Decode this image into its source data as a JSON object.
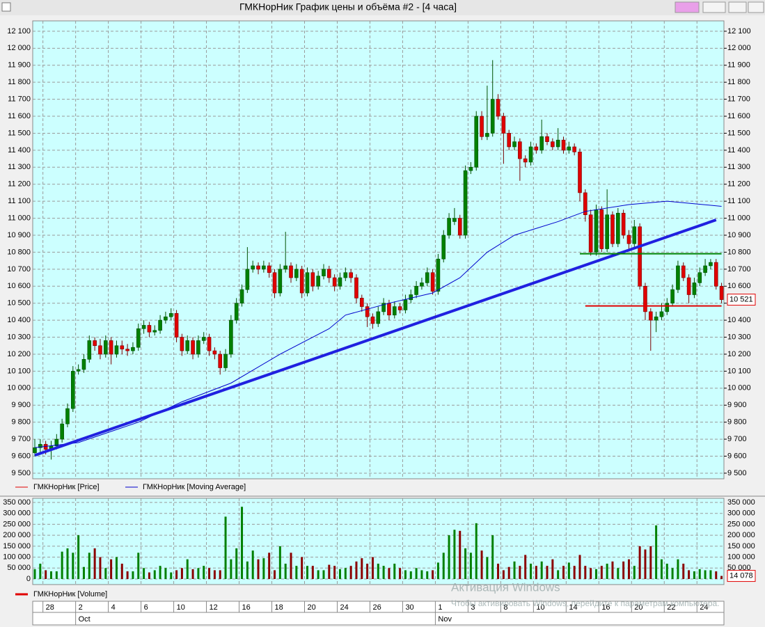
{
  "window_title": "ГМКНорНик График цены и объёма #2 - [4 часа]",
  "chart_data": {
    "type": "candlestick",
    "price_name": "ГМКНорНик [Price]",
    "price_legend_color": "#e00000",
    "up_color": "#008000",
    "down_color": "#e00000",
    "grid": true,
    "categories": [
      null,
      null,
      "28",
      null,
      null,
      null,
      null,
      null,
      "2",
      null,
      null,
      null,
      null,
      null,
      "4",
      null,
      null,
      null,
      null,
      null,
      "6",
      null,
      null,
      null,
      null,
      null,
      "10",
      null,
      null,
      null,
      null,
      null,
      "12",
      null,
      null,
      null,
      null,
      null,
      "16",
      null,
      null,
      null,
      null,
      null,
      "18",
      null,
      null,
      null,
      null,
      null,
      "20",
      null,
      null,
      null,
      null,
      null,
      "24",
      null,
      null,
      null,
      null,
      null,
      "26",
      null,
      null,
      null,
      null,
      null,
      "30",
      null,
      null,
      null,
      null,
      null,
      "1",
      null,
      null,
      null,
      null,
      null,
      "3",
      null,
      null,
      null,
      null,
      null,
      "8",
      null,
      null,
      null,
      null,
      null,
      "10",
      null,
      null,
      null,
      null,
      null,
      "14",
      null,
      null,
      null,
      null,
      null,
      "16",
      null,
      null,
      null,
      null,
      null,
      "20",
      null,
      null,
      null,
      null,
      null,
      "22",
      null,
      null,
      null,
      null,
      null,
      "24",
      null,
      null,
      null,
      null
    ],
    "months": [
      "Oct",
      "Nov"
    ],
    "candles": [
      [
        9620,
        9700,
        9600,
        9650
      ],
      [
        9650,
        9700,
        9620,
        9670
      ],
      [
        9670,
        9690,
        9610,
        9640
      ],
      [
        9640,
        9690,
        9580,
        9660
      ],
      [
        9660,
        9730,
        9640,
        9700
      ],
      [
        9700,
        9820,
        9680,
        9790
      ],
      [
        9790,
        9910,
        9770,
        9880
      ],
      [
        9880,
        10130,
        9860,
        10100
      ],
      [
        10100,
        10140,
        10080,
        10110
      ],
      [
        10110,
        10200,
        10090,
        10170
      ],
      [
        10170,
        10310,
        10150,
        10280
      ],
      [
        10280,
        10300,
        10220,
        10250
      ],
      [
        10250,
        10290,
        10170,
        10200
      ],
      [
        10200,
        10310,
        10180,
        10280
      ],
      [
        10280,
        10300,
        10140,
        10200
      ],
      [
        10200,
        10280,
        10180,
        10250
      ],
      [
        10250,
        10280,
        10200,
        10230
      ],
      [
        10230,
        10260,
        10190,
        10220
      ],
      [
        10220,
        10270,
        10200,
        10240
      ],
      [
        10240,
        10380,
        10220,
        10350
      ],
      [
        10350,
        10400,
        10320,
        10370
      ],
      [
        10370,
        10390,
        10300,
        10330
      ],
      [
        10330,
        10370,
        10310,
        10340
      ],
      [
        10340,
        10430,
        10320,
        10400
      ],
      [
        10400,
        10450,
        10380,
        10420
      ],
      [
        10420,
        10470,
        10400,
        10440
      ],
      [
        10440,
        10460,
        10270,
        10300
      ],
      [
        10300,
        10320,
        10190,
        10220
      ],
      [
        10220,
        10310,
        10200,
        10280
      ],
      [
        10280,
        10300,
        10170,
        10200
      ],
      [
        10200,
        10310,
        10180,
        10280
      ],
      [
        10280,
        10330,
        10260,
        10300
      ],
      [
        10300,
        10320,
        10190,
        10220
      ],
      [
        10220,
        10240,
        10170,
        10200
      ],
      [
        10200,
        10220,
        10080,
        10120
      ],
      [
        10120,
        10230,
        10100,
        10200
      ],
      [
        10200,
        10430,
        10180,
        10400
      ],
      [
        10400,
        10530,
        10380,
        10500
      ],
      [
        10500,
        10610,
        10480,
        10580
      ],
      [
        10580,
        10830,
        10560,
        10700
      ],
      [
        10700,
        10750,
        10680,
        10720
      ],
      [
        10720,
        10740,
        10670,
        10700
      ],
      [
        10700,
        10750,
        10680,
        10720
      ],
      [
        10720,
        10740,
        10650,
        10680
      ],
      [
        10680,
        10700,
        10530,
        10560
      ],
      [
        10560,
        10730,
        10540,
        10700
      ],
      [
        10700,
        10920,
        10680,
        10720
      ],
      [
        10720,
        10740,
        10620,
        10650
      ],
      [
        10650,
        10730,
        10630,
        10700
      ],
      [
        10700,
        10720,
        10530,
        10560
      ],
      [
        10560,
        10710,
        10540,
        10680
      ],
      [
        10680,
        10700,
        10570,
        10600
      ],
      [
        10600,
        10690,
        10580,
        10660
      ],
      [
        10660,
        10730,
        10640,
        10700
      ],
      [
        10700,
        10720,
        10620,
        10650
      ],
      [
        10650,
        10670,
        10570,
        10600
      ],
      [
        10600,
        10680,
        10580,
        10650
      ],
      [
        10650,
        10710,
        10630,
        10680
      ],
      [
        10680,
        10700,
        10620,
        10650
      ],
      [
        10650,
        10670,
        10500,
        10530
      ],
      [
        10530,
        10550,
        10450,
        10480
      ],
      [
        10480,
        10500,
        10360,
        10420
      ],
      [
        10420,
        10440,
        10350,
        10380
      ],
      [
        10380,
        10480,
        10360,
        10450
      ],
      [
        10450,
        10530,
        10430,
        10500
      ],
      [
        10500,
        10520,
        10400,
        10430
      ],
      [
        10430,
        10510,
        10410,
        10480
      ],
      [
        10480,
        10500,
        10440,
        10460
      ],
      [
        10460,
        10550,
        10440,
        10520
      ],
      [
        10520,
        10580,
        10500,
        10550
      ],
      [
        10550,
        10630,
        10530,
        10600
      ],
      [
        10600,
        10650,
        10580,
        10620
      ],
      [
        10620,
        10710,
        10600,
        10680
      ],
      [
        10680,
        10700,
        10550,
        10570
      ],
      [
        10570,
        10790,
        10550,
        10760
      ],
      [
        10760,
        10930,
        10740,
        10900
      ],
      [
        10900,
        11030,
        10880,
        11000
      ],
      [
        10980,
        11060,
        10960,
        11000
      ],
      [
        11000,
        11020,
        10880,
        10900
      ],
      [
        10900,
        11310,
        10880,
        11280
      ],
      [
        11280,
        11330,
        11260,
        11300
      ],
      [
        11300,
        11630,
        11280,
        11600
      ],
      [
        11600,
        11630,
        11460,
        11480
      ],
      [
        11480,
        11780,
        11460,
        11500
      ],
      [
        11500,
        11930,
        11480,
        11700
      ],
      [
        11700,
        11730,
        11580,
        11600
      ],
      [
        11600,
        11620,
        11320,
        11500
      ],
      [
        11500,
        11520,
        11400,
        11420
      ],
      [
        11420,
        11480,
        11400,
        11450
      ],
      [
        11450,
        11470,
        11220,
        11350
      ],
      [
        11350,
        11370,
        11300,
        11330
      ],
      [
        11330,
        11450,
        11310,
        11420
      ],
      [
        11420,
        11440,
        11380,
        11400
      ],
      [
        11400,
        11580,
        11380,
        11480
      ],
      [
        11480,
        11500,
        11430,
        11450
      ],
      [
        11450,
        11470,
        11400,
        11420
      ],
      [
        11420,
        11530,
        11400,
        11460
      ],
      [
        11460,
        11480,
        11380,
        11400
      ],
      [
        11400,
        11450,
        11380,
        11420
      ],
      [
        11420,
        11440,
        11370,
        11390
      ],
      [
        11390,
        11410,
        11100,
        11150
      ],
      [
        11150,
        11170,
        10980,
        11020
      ],
      [
        11020,
        11050,
        10780,
        10800
      ],
      [
        10800,
        11080,
        10780,
        11050
      ],
      [
        11050,
        11070,
        10800,
        10820
      ],
      [
        10820,
        11170,
        10800,
        11020
      ],
      [
        11020,
        11040,
        10830,
        10850
      ],
      [
        10850,
        11060,
        10830,
        11030
      ],
      [
        11030,
        11050,
        10880,
        10900
      ],
      [
        10900,
        10930,
        10820,
        10850
      ],
      [
        10850,
        10990,
        10830,
        10950
      ],
      [
        10950,
        10970,
        10580,
        10600
      ],
      [
        10600,
        10620,
        10400,
        10450
      ],
      [
        10450,
        10470,
        10220,
        10400
      ],
      [
        10400,
        10450,
        10330,
        10420
      ],
      [
        10420,
        10500,
        10400,
        10450
      ],
      [
        10450,
        10530,
        10430,
        10500
      ],
      [
        10500,
        10610,
        10480,
        10580
      ],
      [
        10580,
        10750,
        10560,
        10720
      ],
      [
        10720,
        10740,
        10630,
        10650
      ],
      [
        10650,
        10670,
        10500,
        10550
      ],
      [
        10550,
        10650,
        10530,
        10620
      ],
      [
        10620,
        10710,
        10600,
        10680
      ],
      [
        10680,
        10760,
        10660,
        10720
      ],
      [
        10720,
        10760,
        10700,
        10740
      ],
      [
        10740,
        10760,
        10580,
        10600
      ],
      [
        10600,
        10620,
        10500,
        10521
      ]
    ],
    "ylim": [
      9467,
      12161
    ],
    "yticks": [
      {
        "value": 9500,
        "label": "9 500"
      },
      {
        "value": 9600,
        "label": "9 600"
      },
      {
        "value": 9700,
        "label": "9 700"
      },
      {
        "value": 9800,
        "label": "9 800"
      },
      {
        "value": 9900,
        "label": "9 900"
      },
      {
        "value": 10000,
        "label": "10 000"
      },
      {
        "value": 10100,
        "label": "10 100"
      },
      {
        "value": 10200,
        "label": "10 200"
      },
      {
        "value": 10300,
        "label": "10 300"
      },
      {
        "value": 10400,
        "label": "10 400"
      },
      {
        "value": 10500,
        "label": "10 500"
      },
      {
        "value": 10600,
        "label": "10 600"
      },
      {
        "value": 10700,
        "label": "10 700"
      },
      {
        "value": 10800,
        "label": "10 800"
      },
      {
        "value": 10900,
        "label": "10 900"
      },
      {
        "value": 11000,
        "label": "11 000"
      },
      {
        "value": 11100,
        "label": "11 100"
      },
      {
        "value": 11200,
        "label": "11 200"
      },
      {
        "value": 11300,
        "label": "11 300"
      },
      {
        "value": 11400,
        "label": "11 400"
      },
      {
        "value": 11500,
        "label": "11 500"
      },
      {
        "value": 11600,
        "label": "11 600"
      },
      {
        "value": 11700,
        "label": "11 700"
      },
      {
        "value": 11800,
        "label": "11 800"
      },
      {
        "value": 11900,
        "label": "11 900"
      },
      {
        "value": 12000,
        "label": "12 000"
      },
      {
        "value": 12100,
        "label": "12 100"
      }
    ],
    "last_price": {
      "value": 10521,
      "label": "10 521"
    },
    "ma": {
      "name": "ГМКНорНик [Moving Average]",
      "color": "#0000cc",
      "x": [
        0,
        8,
        19,
        27,
        36,
        45,
        54,
        57,
        65,
        73,
        78,
        83,
        88,
        96,
        101,
        109,
        116,
        126
      ],
      "values": [
        9650,
        9680,
        9800,
        9920,
        10030,
        10200,
        10350,
        10430,
        10500,
        10560,
        10650,
        10800,
        10900,
        10980,
        11040,
        11080,
        11100,
        11070
      ]
    },
    "trendlines": [
      {
        "color": "#2020e0",
        "x": [
          0,
          125
        ],
        "values": [
          9605,
          10990
        ]
      },
      {
        "color": "#008000",
        "x": [
          100,
          126
        ],
        "values": [
          10791,
          10791
        ]
      },
      {
        "color": "#e00000",
        "x": [
          101,
          126
        ],
        "values": [
          10484,
          10484
        ]
      }
    ],
    "volume": {
      "name": "ГМКНорНик [Volume]",
      "legend_color": "#e00000",
      "up_color": "#008000",
      "down_color": "#8b0000",
      "values": [
        45000,
        70000,
        40000,
        35000,
        35000,
        125000,
        140000,
        120000,
        200000,
        55000,
        120000,
        140000,
        100000,
        50000,
        90000,
        100000,
        70000,
        35000,
        35000,
        120000,
        50000,
        30000,
        40000,
        60000,
        50000,
        30000,
        40000,
        50000,
        90000,
        45000,
        50000,
        60000,
        50000,
        40000,
        40000,
        285000,
        90000,
        140000,
        330000,
        80000,
        130000,
        90000,
        95000,
        120000,
        40000,
        150000,
        70000,
        120000,
        60000,
        100000,
        60000,
        60000,
        40000,
        40000,
        65000,
        60000,
        45000,
        50000,
        60000,
        80000,
        95000,
        70000,
        100000,
        70000,
        60000,
        50000,
        70000,
        50000,
        40000,
        35000,
        50000,
        40000,
        35000,
        40000,
        75000,
        120000,
        200000,
        225000,
        220000,
        140000,
        120000,
        255000,
        130000,
        100000,
        200000,
        70000,
        40000,
        55000,
        80000,
        60000,
        110000,
        70000,
        60000,
        80000,
        60000,
        90000,
        40000,
        60000,
        75000,
        60000,
        110000,
        60000,
        50000,
        45000,
        60000,
        70000,
        80000,
        50000,
        80000,
        90000,
        60000,
        150000,
        135000,
        150000,
        245000,
        90000,
        70000,
        50000,
        90000,
        70000,
        40000,
        35000,
        45000,
        40000,
        40000,
        35000,
        14078
      ],
      "ylim": [
        0,
        369000
      ],
      "yticks": [
        {
          "value": 0,
          "label": "0"
        },
        {
          "value": 50000,
          "label": "50 000"
        },
        {
          "value": 100000,
          "label": "100 000"
        },
        {
          "value": 150000,
          "label": "150 000"
        },
        {
          "value": 200000,
          "label": "200 000"
        },
        {
          "value": 250000,
          "label": "250 000"
        },
        {
          "value": 300000,
          "label": "300 000"
        },
        {
          "value": 350000,
          "label": "350 000"
        }
      ],
      "last": {
        "value": 14078,
        "label": "14 078"
      }
    }
  },
  "watermark": {
    "title": "Активация Windows",
    "text": "Чтобы активировать Windows, перейдите к параметрам компьютера."
  }
}
